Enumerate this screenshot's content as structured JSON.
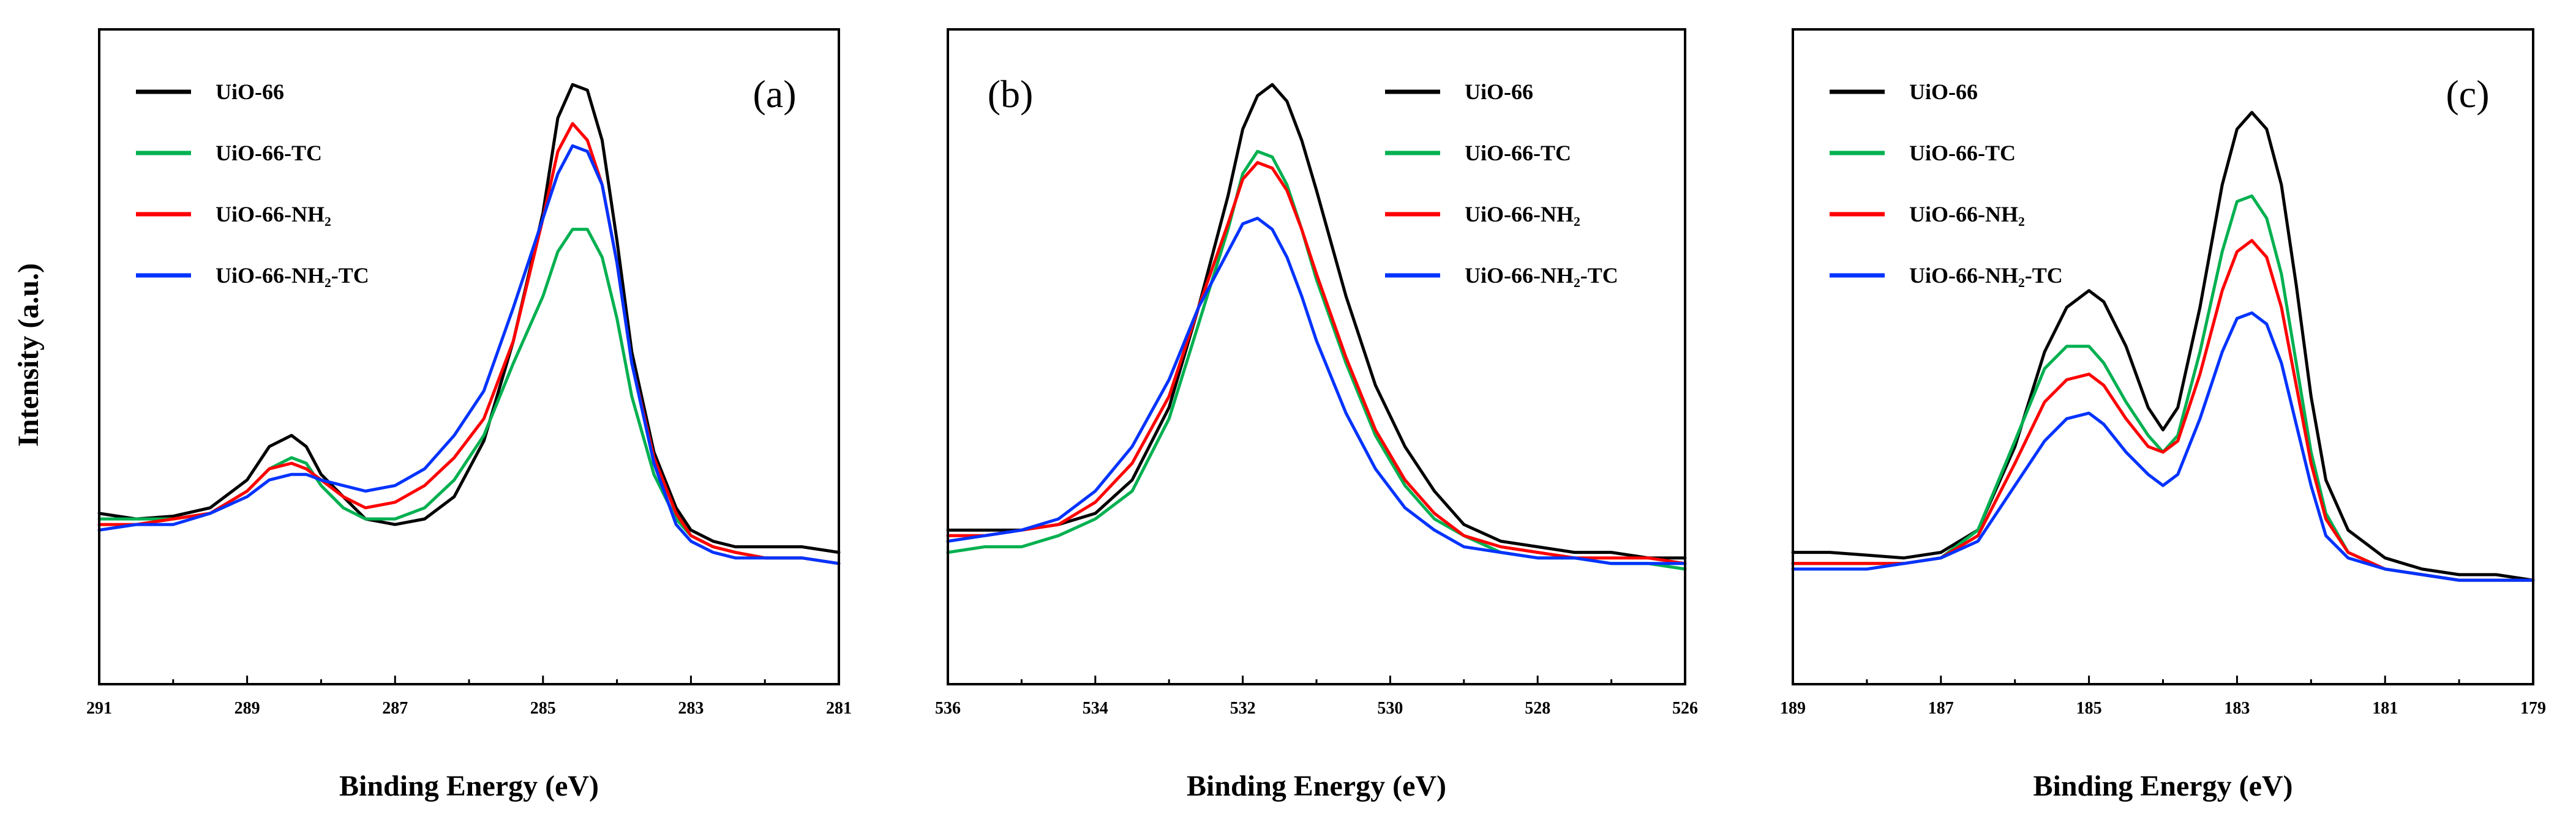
{
  "chart_data": [
    {
      "type": "line",
      "panel_label": "(a)",
      "xlabel": "Binding Energy (eV)",
      "ylabel": "Intensity (a.u.)",
      "xlim": [
        291,
        281
      ],
      "xticks": [
        "291",
        "289",
        "287",
        "285",
        "283",
        "281"
      ],
      "ylim": [
        0,
        100
      ],
      "legend_position": "top-left",
      "series": [
        {
          "name": "UiO-66",
          "color": "#000000",
          "x": [
            291,
            290.5,
            290,
            289.5,
            289,
            288.7,
            288.4,
            288.2,
            288,
            287.7,
            287.4,
            287,
            286.6,
            286.2,
            285.8,
            285.4,
            285,
            284.8,
            284.6,
            284.4,
            284.2,
            284,
            283.8,
            283.5,
            283.2,
            283,
            282.7,
            282.4,
            282,
            281.5,
            281
          ],
          "y": [
            21,
            20,
            20.5,
            22,
            27,
            33,
            35,
            33,
            28,
            24,
            20,
            19,
            20,
            24,
            34,
            52,
            75,
            92,
            98,
            97,
            88,
            70,
            50,
            32,
            22,
            18,
            16,
            15,
            15,
            15,
            14
          ]
        },
        {
          "name": "UiO-66-TC",
          "color": "#00b050",
          "x": [
            291,
            290.5,
            290,
            289.5,
            289,
            288.7,
            288.4,
            288.2,
            288,
            287.7,
            287.4,
            287,
            286.6,
            286.2,
            285.8,
            285.4,
            285,
            284.8,
            284.6,
            284.4,
            284.2,
            284,
            283.8,
            283.5,
            283.2,
            283,
            282.7,
            282.4,
            282,
            281.5,
            281
          ],
          "y": [
            20,
            20,
            20,
            21,
            25,
            29,
            31,
            30,
            26,
            22,
            20,
            20,
            22,
            27,
            35,
            48,
            60,
            68,
            72,
            72,
            67,
            56,
            42,
            28,
            20,
            17,
            15,
            14,
            13,
            13,
            12
          ]
        },
        {
          "name": "UiO-66-NH₂",
          "color": "#ff0000",
          "x": [
            291,
            290.5,
            290,
            289.5,
            289,
            288.7,
            288.4,
            288.2,
            288,
            287.7,
            287.4,
            287,
            286.6,
            286.2,
            285.8,
            285.4,
            285,
            284.8,
            284.6,
            284.4,
            284.2,
            284,
            283.8,
            283.5,
            283.2,
            283,
            282.7,
            282.4,
            282,
            281.5,
            281
          ],
          "y": [
            19,
            19,
            20,
            21,
            25,
            29,
            30,
            29,
            27,
            24,
            22,
            23,
            26,
            31,
            38,
            52,
            74,
            86,
            91,
            88,
            80,
            66,
            48,
            31,
            21,
            17,
            15,
            14,
            13,
            13,
            12
          ]
        },
        {
          "name": "UiO-66-NH₂-TC",
          "color": "#0033ff",
          "x": [
            291,
            290.5,
            290,
            289.5,
            289,
            288.7,
            288.4,
            288.2,
            288,
            287.7,
            287.4,
            287,
            286.6,
            286.2,
            285.8,
            285.4,
            285,
            284.8,
            284.6,
            284.4,
            284.2,
            284,
            283.8,
            283.5,
            283.2,
            283,
            282.7,
            282.4,
            282,
            281.5,
            281
          ],
          "y": [
            18,
            19,
            19,
            21,
            24,
            27,
            28,
            28,
            27,
            26,
            25,
            26,
            29,
            35,
            43,
            58,
            74,
            82,
            87,
            86,
            80,
            66,
            48,
            30,
            19,
            16,
            14,
            13,
            13,
            13,
            12
          ]
        }
      ]
    },
    {
      "type": "line",
      "panel_label": "(b)",
      "xlabel": "Binding Energy (eV)",
      "ylabel": "",
      "xlim": [
        536,
        526
      ],
      "xticks": [
        "536",
        "534",
        "532",
        "530",
        "528",
        "526"
      ],
      "ylim": [
        0,
        100
      ],
      "legend_position": "top-right",
      "series": [
        {
          "name": "UiO-66",
          "color": "#000000",
          "x": [
            536,
            535.5,
            535,
            534.5,
            534,
            533.5,
            533,
            532.6,
            532.2,
            532,
            531.8,
            531.6,
            531.4,
            531.2,
            531,
            530.6,
            530.2,
            529.8,
            529.4,
            529,
            528.5,
            528,
            527.5,
            527,
            526.5,
            526
          ],
          "y": [
            18,
            18,
            18,
            19,
            21,
            27,
            40,
            58,
            78,
            90,
            96,
            98,
            95,
            88,
            79,
            60,
            44,
            33,
            25,
            19,
            16,
            15,
            14,
            14,
            13,
            13
          ]
        },
        {
          "name": "UiO-66-TC",
          "color": "#00b050",
          "x": [
            536,
            535.5,
            535,
            534.5,
            534,
            533.5,
            533,
            532.6,
            532.2,
            532,
            531.8,
            531.6,
            531.4,
            531.2,
            531,
            530.6,
            530.2,
            529.8,
            529.4,
            529,
            528.5,
            528,
            527.5,
            527,
            526.5,
            526
          ],
          "y": [
            14,
            15,
            15,
            17,
            20,
            25,
            38,
            55,
            72,
            82,
            86,
            85,
            80,
            72,
            63,
            48,
            35,
            26,
            20,
            17,
            14,
            13,
            13,
            12,
            12,
            11
          ]
        },
        {
          "name": "UiO-66-NH₂",
          "color": "#ff0000",
          "x": [
            536,
            535.5,
            535,
            534.5,
            534,
            533.5,
            533,
            532.6,
            532.2,
            532,
            531.8,
            531.6,
            531.4,
            531.2,
            531,
            530.6,
            530.2,
            529.8,
            529.4,
            529,
            528.5,
            528,
            527.5,
            527,
            526.5,
            526
          ],
          "y": [
            17,
            17,
            18,
            19,
            23,
            30,
            42,
            58,
            73,
            81,
            84,
            83,
            79,
            72,
            64,
            49,
            36,
            27,
            21,
            17,
            15,
            14,
            13,
            13,
            13,
            12
          ]
        },
        {
          "name": "UiO-66-NH₂-TC",
          "color": "#0033ff",
          "x": [
            536,
            535.5,
            535,
            534.5,
            534,
            533.5,
            533,
            532.6,
            532.2,
            532,
            531.8,
            531.6,
            531.4,
            531.2,
            531,
            530.6,
            530.2,
            529.8,
            529.4,
            529,
            528.5,
            528,
            527.5,
            527,
            526.5,
            526
          ],
          "y": [
            16,
            17,
            18,
            20,
            25,
            33,
            45,
            58,
            68,
            73,
            74,
            72,
            67,
            60,
            52,
            39,
            29,
            22,
            18,
            15,
            14,
            13,
            13,
            12,
            12,
            12
          ]
        }
      ]
    },
    {
      "type": "line",
      "panel_label": "(c)",
      "xlabel": "Binding Energy (eV)",
      "ylabel": "",
      "xlim": [
        189,
        179
      ],
      "xticks": [
        "189",
        "187",
        "185",
        "183",
        "181",
        "179"
      ],
      "ylim": [
        0,
        100
      ],
      "legend_position": "top-left",
      "series": [
        {
          "name": "UiO-66",
          "color": "#000000",
          "x": [
            189,
            188.5,
            188,
            187.5,
            187,
            186.5,
            186,
            185.6,
            185.3,
            185,
            184.8,
            184.5,
            184.2,
            184,
            183.8,
            183.5,
            183.2,
            183,
            182.8,
            182.6,
            182.4,
            182.2,
            182,
            181.8,
            181.5,
            181,
            180.5,
            180,
            179.5,
            179
          ],
          "y": [
            14,
            14,
            13.5,
            13,
            14,
            18,
            33,
            50,
            58,
            61,
            59,
            51,
            40,
            36,
            40,
            58,
            80,
            90,
            93,
            90,
            80,
            62,
            42,
            27,
            18,
            13,
            11,
            10,
            10,
            9
          ]
        },
        {
          "name": "UiO-66-TC",
          "color": "#00b050",
          "x": [
            189,
            188.5,
            188,
            187.5,
            187,
            186.5,
            186,
            185.6,
            185.3,
            185,
            184.8,
            184.5,
            184.2,
            184,
            183.8,
            183.5,
            183.2,
            183,
            182.8,
            182.6,
            182.4,
            182.2,
            182,
            181.8,
            181.5,
            181,
            180.5,
            180,
            179.5,
            179
          ],
          "y": [
            12,
            12,
            12,
            12,
            13,
            18,
            34,
            47,
            51,
            51,
            48,
            41,
            35,
            32,
            35,
            50,
            68,
            77,
            78,
            74,
            64,
            48,
            32,
            21,
            14,
            11,
            10,
            9,
            9,
            9
          ]
        },
        {
          "name": "UiO-66-NH₂",
          "color": "#ff0000",
          "x": [
            189,
            188.5,
            188,
            187.5,
            187,
            186.5,
            186,
            185.6,
            185.3,
            185,
            184.8,
            184.5,
            184.2,
            184,
            183.8,
            183.5,
            183.2,
            183,
            182.8,
            182.6,
            182.4,
            182.2,
            182,
            181.8,
            181.5,
            181,
            180.5,
            180,
            179.5,
            179
          ],
          "y": [
            12,
            12,
            12,
            12,
            13,
            17,
            30,
            41,
            45,
            46,
            44,
            38,
            33,
            32,
            34,
            46,
            61,
            68,
            70,
            67,
            58,
            44,
            30,
            20,
            14,
            11,
            10,
            9,
            9,
            9
          ]
        },
        {
          "name": "UiO-66-NH₂-TC",
          "color": "#0033ff",
          "x": [
            189,
            188.5,
            188,
            187.5,
            187,
            186.5,
            186,
            185.6,
            185.3,
            185,
            184.8,
            184.5,
            184.2,
            184,
            183.8,
            183.5,
            183.2,
            183,
            182.8,
            182.6,
            182.4,
            182.2,
            182,
            181.8,
            181.5,
            181,
            180.5,
            180,
            179.5,
            179
          ],
          "y": [
            11,
            11,
            11,
            12,
            13,
            16,
            26,
            34,
            38,
            39,
            37,
            32,
            28,
            26,
            28,
            38,
            50,
            56,
            57,
            55,
            48,
            37,
            26,
            17,
            13,
            11,
            10,
            9,
            9,
            9
          ]
        }
      ]
    }
  ]
}
